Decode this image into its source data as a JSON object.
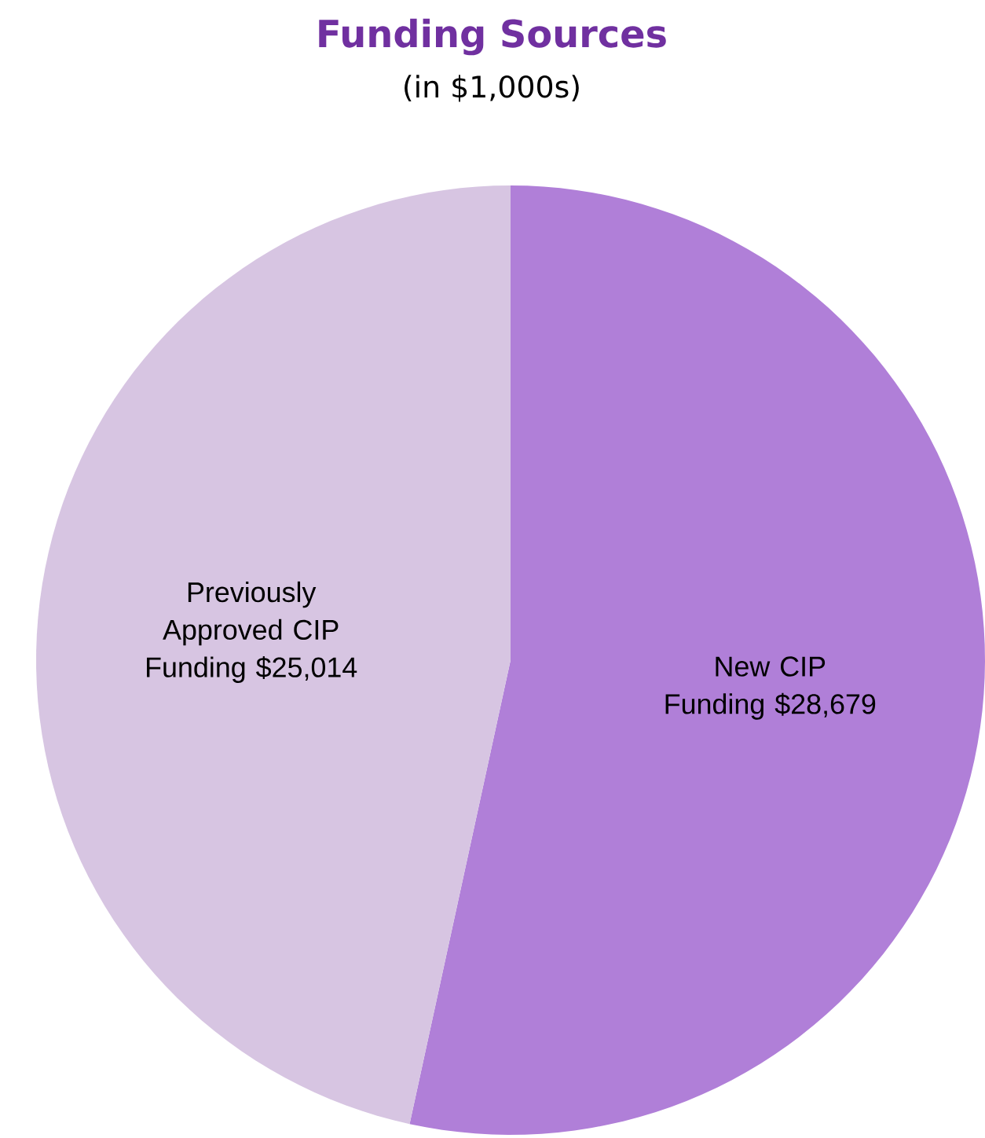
{
  "chart_data": {
    "type": "pie",
    "title": "Funding Sources",
    "subtitle": "(in $1,000s)",
    "categories": [
      "New CIP Funding",
      "Previously Approved CIP Funding"
    ],
    "values": [
      28679,
      25014
    ],
    "value_labels": [
      "$28,679",
      "$25,014"
    ],
    "colors": [
      "#b07fd8",
      "#d7c5e2"
    ]
  }
}
